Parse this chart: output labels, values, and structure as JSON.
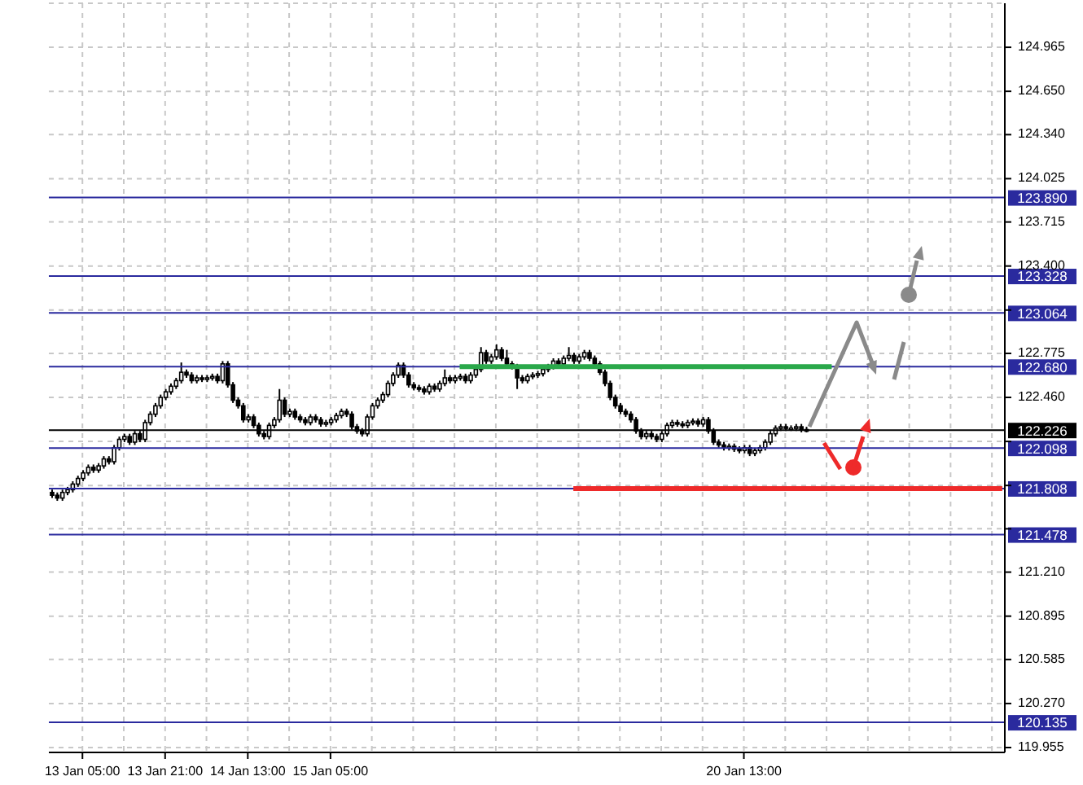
{
  "chart_data": {
    "type": "candlestick",
    "categories": [
      null,
      null,
      null,
      null,
      null,
      null,
      "13 Jan 05:00",
      null,
      null,
      null,
      null,
      null,
      null,
      null,
      null,
      null,
      null,
      null,
      null,
      null,
      null,
      null,
      "13 Jan 21:00",
      null,
      null,
      null,
      null,
      null,
      null,
      null,
      null,
      null,
      null,
      null,
      null,
      null,
      null,
      null,
      "14 Jan 13:00",
      null,
      null,
      null,
      null,
      null,
      null,
      null,
      null,
      null,
      null,
      null,
      null,
      null,
      null,
      null,
      "15 Jan 05:00",
      null,
      null,
      null,
      null,
      null,
      null,
      null,
      null,
      null,
      null,
      null,
      null,
      null,
      null,
      null,
      null,
      null,
      null,
      null,
      null,
      null,
      null,
      null,
      null,
      null,
      null,
      null,
      null,
      null,
      null,
      null,
      null,
      null,
      null,
      null,
      null,
      null,
      null,
      null,
      null,
      null,
      null,
      null,
      null,
      null,
      null,
      null,
      null,
      null,
      null,
      null,
      null,
      null,
      null,
      null,
      null,
      null,
      null,
      null,
      null,
      null,
      null,
      null,
      null,
      null,
      null,
      null,
      null,
      null,
      null,
      null,
      null,
      null,
      null,
      null,
      null,
      null,
      null,
      null,
      "20 Jan 13:00",
      null,
      null,
      null,
      null,
      null,
      null,
      null,
      null,
      null,
      null,
      null,
      null,
      null,
      null,
      null,
      null,
      null,
      null,
      null,
      null,
      null,
      null,
      null,
      null,
      null,
      null,
      null,
      null,
      null,
      null,
      null,
      null,
      null,
      null,
      null,
      null,
      null,
      null,
      null,
      null,
      null,
      null,
      null,
      null,
      null,
      null,
      null,
      null,
      null,
      null
    ],
    "ohlc": [
      [
        121.78,
        121.8,
        121.74,
        121.76
      ],
      [
        121.76,
        121.78,
        121.72,
        121.74
      ],
      [
        121.74,
        121.8,
        121.72,
        121.78
      ],
      [
        121.78,
        121.82,
        121.76,
        121.8
      ],
      [
        121.8,
        121.86,
        121.78,
        121.84
      ],
      [
        121.84,
        121.9,
        121.82,
        121.88
      ],
      [
        121.88,
        121.94,
        121.86,
        121.92
      ],
      [
        121.92,
        121.98,
        121.9,
        121.96
      ],
      [
        121.96,
        121.98,
        121.92,
        121.94
      ],
      [
        121.94,
        121.99,
        121.92,
        121.97
      ],
      [
        121.97,
        122.04,
        121.95,
        122.02
      ],
      [
        122.02,
        122.04,
        121.98,
        122.0
      ],
      [
        122.0,
        122.12,
        121.98,
        122.1
      ],
      [
        122.1,
        122.18,
        122.08,
        122.16
      ],
      [
        122.16,
        122.2,
        122.14,
        122.18
      ],
      [
        122.18,
        122.2,
        122.12,
        122.14
      ],
      [
        122.14,
        122.22,
        122.12,
        122.2
      ],
      [
        122.2,
        122.22,
        122.14,
        122.16
      ],
      [
        122.16,
        122.3,
        122.14,
        122.28
      ],
      [
        122.28,
        122.36,
        122.26,
        122.34
      ],
      [
        122.34,
        122.42,
        122.32,
        122.4
      ],
      [
        122.4,
        122.48,
        122.38,
        122.46
      ],
      [
        122.46,
        122.52,
        122.44,
        122.5
      ],
      [
        122.5,
        122.56,
        122.48,
        122.54
      ],
      [
        122.54,
        122.6,
        122.52,
        122.58
      ],
      [
        122.58,
        122.71,
        122.56,
        122.64
      ],
      [
        122.64,
        122.66,
        122.6,
        122.62
      ],
      [
        122.62,
        122.64,
        122.56,
        122.58
      ],
      [
        122.58,
        122.62,
        122.56,
        122.6
      ],
      [
        122.6,
        122.62,
        122.57,
        122.59
      ],
      [
        122.59,
        122.62,
        122.57,
        122.6
      ],
      [
        122.6,
        122.63,
        122.58,
        122.61
      ],
      [
        122.61,
        122.63,
        122.56,
        122.58
      ],
      [
        122.58,
        122.72,
        122.56,
        122.7
      ],
      [
        122.7,
        122.72,
        122.53,
        122.55
      ],
      [
        122.55,
        122.57,
        122.42,
        122.44
      ],
      [
        122.44,
        122.46,
        122.38,
        122.4
      ],
      [
        122.4,
        122.42,
        122.28,
        122.3
      ],
      [
        122.3,
        122.34,
        122.28,
        122.32
      ],
      [
        122.32,
        122.34,
        122.24,
        122.26
      ],
      [
        122.26,
        122.28,
        122.18,
        122.2
      ],
      [
        122.2,
        122.22,
        122.16,
        122.18
      ],
      [
        122.18,
        122.28,
        122.16,
        122.26
      ],
      [
        122.26,
        122.32,
        122.24,
        122.3
      ],
      [
        122.3,
        122.52,
        122.28,
        122.44
      ],
      [
        122.44,
        122.46,
        122.32,
        122.34
      ],
      [
        122.34,
        122.38,
        122.32,
        122.36
      ],
      [
        122.36,
        122.38,
        122.3,
        122.32
      ],
      [
        122.32,
        122.34,
        122.28,
        122.3
      ],
      [
        122.3,
        122.32,
        122.26,
        122.28
      ],
      [
        122.28,
        122.34,
        122.26,
        122.32
      ],
      [
        122.32,
        122.34,
        122.28,
        122.3
      ],
      [
        122.3,
        122.32,
        122.25,
        122.27
      ],
      [
        122.27,
        122.3,
        122.25,
        122.28
      ],
      [
        122.28,
        122.32,
        122.26,
        122.3
      ],
      [
        122.3,
        122.35,
        122.28,
        122.33
      ],
      [
        122.33,
        122.38,
        122.31,
        122.36
      ],
      [
        122.36,
        122.38,
        122.32,
        122.34
      ],
      [
        122.34,
        122.36,
        122.23,
        122.25
      ],
      [
        122.25,
        122.27,
        122.2,
        122.22
      ],
      [
        122.22,
        122.24,
        122.18,
        122.2
      ],
      [
        122.2,
        122.34,
        122.18,
        122.32
      ],
      [
        122.32,
        122.42,
        122.3,
        122.4
      ],
      [
        122.4,
        122.46,
        122.38,
        122.44
      ],
      [
        122.44,
        122.5,
        122.42,
        122.48
      ],
      [
        122.48,
        122.58,
        122.46,
        122.56
      ],
      [
        122.56,
        122.64,
        122.54,
        122.62
      ],
      [
        122.62,
        122.71,
        122.6,
        122.69
      ],
      [
        122.69,
        122.71,
        122.6,
        122.62
      ],
      [
        122.62,
        122.64,
        122.53,
        122.55
      ],
      [
        122.55,
        122.57,
        122.51,
        122.53
      ],
      [
        122.53,
        122.55,
        122.5,
        122.52
      ],
      [
        122.52,
        122.54,
        122.48,
        122.5
      ],
      [
        122.5,
        122.56,
        122.48,
        122.54
      ],
      [
        122.54,
        122.56,
        122.5,
        122.52
      ],
      [
        122.52,
        122.58,
        122.5,
        122.56
      ],
      [
        122.56,
        122.66,
        122.54,
        122.6
      ],
      [
        122.6,
        122.62,
        122.56,
        122.58
      ],
      [
        122.58,
        122.62,
        122.56,
        122.6
      ],
      [
        122.6,
        122.63,
        122.58,
        122.61
      ],
      [
        122.61,
        122.63,
        122.56,
        122.58
      ],
      [
        122.58,
        122.64,
        122.56,
        122.62
      ],
      [
        122.62,
        122.68,
        122.6,
        122.66
      ],
      [
        122.66,
        122.82,
        122.64,
        122.78
      ],
      [
        122.78,
        122.8,
        122.7,
        122.72
      ],
      [
        122.72,
        122.77,
        122.7,
        122.75
      ],
      [
        122.75,
        122.84,
        122.73,
        122.8
      ],
      [
        122.8,
        122.82,
        122.72,
        122.74
      ],
      [
        122.74,
        122.8,
        122.68,
        122.7
      ],
      [
        122.7,
        122.72,
        122.66,
        122.68
      ],
      [
        122.68,
        122.7,
        122.52,
        122.6
      ],
      [
        122.6,
        122.62,
        122.56,
        122.58
      ],
      [
        122.58,
        122.63,
        122.56,
        122.61
      ],
      [
        122.61,
        122.64,
        122.59,
        122.62
      ],
      [
        122.62,
        122.65,
        122.6,
        122.63
      ],
      [
        122.63,
        122.68,
        122.61,
        122.66
      ],
      [
        122.66,
        122.7,
        122.64,
        122.68
      ],
      [
        122.68,
        122.74,
        122.66,
        122.72
      ],
      [
        122.72,
        122.74,
        122.68,
        122.7
      ],
      [
        122.7,
        122.76,
        122.68,
        122.74
      ],
      [
        122.74,
        122.82,
        122.72,
        122.76
      ],
      [
        122.76,
        122.78,
        122.7,
        122.72
      ],
      [
        122.72,
        122.77,
        122.7,
        122.75
      ],
      [
        122.75,
        122.8,
        122.73,
        122.78
      ],
      [
        122.78,
        122.8,
        122.72,
        122.74
      ],
      [
        122.74,
        122.76,
        122.68,
        122.7
      ],
      [
        122.7,
        122.72,
        122.62,
        122.64
      ],
      [
        122.64,
        122.66,
        122.54,
        122.56
      ],
      [
        122.56,
        122.58,
        122.44,
        122.46
      ],
      [
        122.46,
        122.48,
        122.38,
        122.4
      ],
      [
        122.4,
        122.42,
        122.34,
        122.36
      ],
      [
        122.36,
        122.38,
        122.32,
        122.34
      ],
      [
        122.34,
        122.36,
        122.28,
        122.3
      ],
      [
        122.3,
        122.32,
        122.2,
        122.22
      ],
      [
        122.22,
        122.24,
        122.16,
        122.18
      ],
      [
        122.18,
        122.22,
        122.16,
        122.2
      ],
      [
        122.2,
        122.22,
        122.16,
        122.18
      ],
      [
        122.18,
        122.2,
        122.14,
        122.16
      ],
      [
        122.16,
        122.22,
        122.14,
        122.2
      ],
      [
        122.2,
        122.28,
        122.18,
        122.26
      ],
      [
        122.26,
        122.3,
        122.24,
        122.28
      ],
      [
        122.28,
        122.3,
        122.25,
        122.27
      ],
      [
        122.27,
        122.29,
        122.24,
        122.26
      ],
      [
        122.26,
        122.3,
        122.24,
        122.28
      ],
      [
        122.28,
        122.31,
        122.26,
        122.29
      ],
      [
        122.29,
        122.31,
        122.25,
        122.27
      ],
      [
        122.27,
        122.32,
        122.25,
        122.3
      ],
      [
        122.3,
        122.32,
        122.2,
        122.22
      ],
      [
        122.22,
        122.24,
        122.12,
        122.14
      ],
      [
        122.14,
        122.16,
        122.1,
        122.12
      ],
      [
        122.12,
        122.14,
        122.08,
        122.1
      ],
      [
        122.1,
        122.13,
        122.08,
        122.11
      ],
      [
        122.11,
        122.13,
        122.07,
        122.09
      ],
      [
        122.09,
        122.11,
        122.06,
        122.08
      ],
      [
        122.08,
        122.12,
        122.06,
        122.1
      ],
      [
        122.1,
        122.12,
        122.04,
        122.06
      ],
      [
        122.06,
        122.1,
        122.04,
        122.08
      ],
      [
        122.08,
        122.12,
        122.06,
        122.1
      ],
      [
        122.1,
        122.16,
        122.08,
        122.14
      ],
      [
        122.14,
        122.22,
        122.12,
        122.2
      ],
      [
        122.2,
        122.26,
        122.18,
        122.24
      ],
      [
        122.24,
        122.27,
        122.22,
        122.25
      ],
      [
        122.25,
        122.27,
        122.22,
        122.24
      ],
      [
        122.24,
        122.26,
        122.22,
        122.24
      ],
      [
        122.24,
        122.27,
        122.22,
        122.25
      ],
      [
        122.25,
        122.27,
        122.21,
        122.23
      ],
      [
        122.23,
        122.25,
        122.21,
        122.226
      ],
      null,
      null,
      null,
      null,
      null,
      null,
      null,
      null,
      null,
      null,
      null,
      null,
      null,
      null,
      null,
      null,
      null,
      null,
      null,
      null,
      null,
      null,
      null,
      null,
      null,
      null,
      null,
      null,
      null,
      null,
      null,
      null,
      null,
      null,
      null,
      null,
      null,
      null
    ],
    "ylim": [
      119.92,
      125.28
    ],
    "yticks": [
      124.965,
      {
        "value": 124.65,
        "label": "124.650"
      },
      {
        "value": 124.34,
        "label": "124.340"
      },
      124.025,
      123.715,
      {
        "value": 123.4,
        "label": "123.400"
      },
      {
        "value": 123.085,
        "label": null
      },
      122.775,
      {
        "value": 122.46,
        "label": "122.460"
      },
      {
        "value": 122.145,
        "label": null
      },
      {
        "value": 121.83,
        "label": null
      },
      {
        "value": 121.52,
        "label": null
      },
      {
        "value": 121.21,
        "label": "121.210"
      },
      120.895,
      120.585,
      {
        "value": 120.27,
        "label": "120.270"
      },
      119.955
    ],
    "ref_lines": [
      {
        "axis": "y",
        "value": 123.89,
        "label": "123.890",
        "color": "#2a2a9e"
      },
      {
        "axis": "y",
        "value": 123.328,
        "label": "123.328",
        "color": "#2a2a9e"
      },
      {
        "axis": "y",
        "value": 123.064,
        "label": "123.064",
        "color": "#2a2a9e"
      },
      {
        "axis": "y",
        "value": 122.68,
        "label": "122.680",
        "color": "#2a2a9e"
      },
      {
        "axis": "y",
        "value": 122.226,
        "label": "122.226",
        "color": "#000000"
      },
      {
        "axis": "y",
        "value": 122.098,
        "label": "122.098",
        "color": "#2a2a9e"
      },
      {
        "axis": "y",
        "value": 121.808,
        "label": "121.808",
        "color": "#2a2a9e"
      },
      {
        "axis": "y",
        "value": 121.478,
        "label": "121.478",
        "color": "#2a2a9e"
      },
      {
        "axis": "y",
        "value": 120.135,
        "label": "120.135",
        "color": "#2a2a9e"
      },
      {
        "axis": "y",
        "value": 122.68,
        "color": "#2aa84a"
      },
      {
        "axis": "y",
        "value": 121.808,
        "color": "#ee2a2a"
      }
    ],
    "grid": true
  }
}
